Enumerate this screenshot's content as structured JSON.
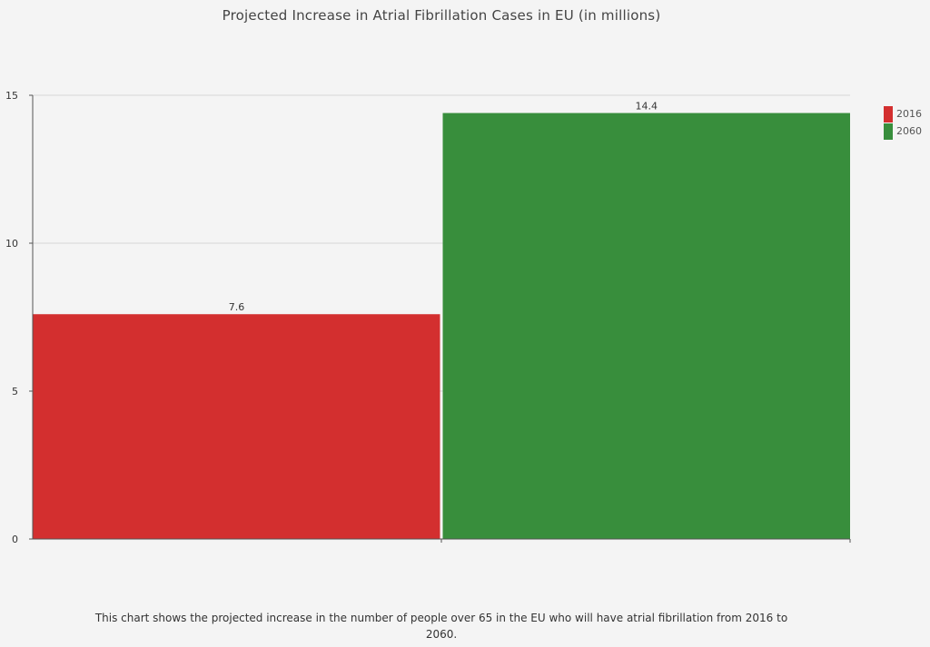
{
  "chart_data": {
    "type": "bar",
    "title": "Projected Increase in Atrial Fibrillation Cases in EU (in millions)",
    "categories": [
      "2016",
      "2060"
    ],
    "values": [
      7.6,
      14.4
    ],
    "data_labels": [
      "7.6",
      "14.4"
    ],
    "colors": [
      "#d32f2f",
      "#388e3c"
    ],
    "ylim": [
      0,
      15
    ],
    "yticks": [
      0,
      5,
      10,
      15
    ],
    "ytick_labels": [
      "0",
      "5",
      "10",
      "15"
    ],
    "grid": true,
    "legend": {
      "placement": "right-top",
      "entries": [
        {
          "label": "2016",
          "color": "#d32f2f"
        },
        {
          "label": "2060",
          "color": "#388e3c"
        }
      ]
    },
    "xlabel": "",
    "ylabel": ""
  },
  "caption": "This chart shows the projected increase in the number of people over 65 in the EU who will have atrial fibrillation from 2016 to 2060."
}
